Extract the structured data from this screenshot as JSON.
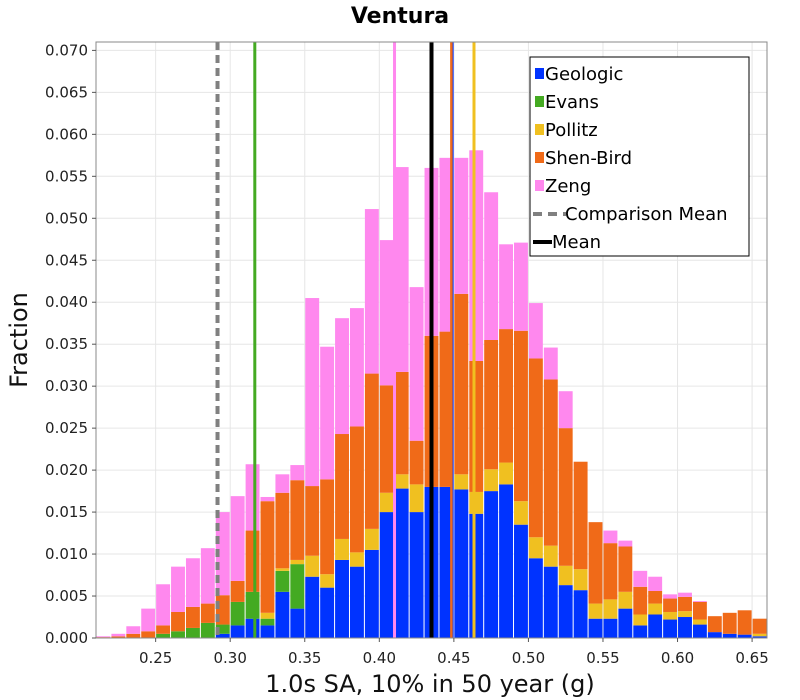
{
  "chart_data": {
    "type": "bar",
    "stacked": true,
    "title": "Ventura",
    "xlabel": "1.0s SA, 10% in 50 year (g)",
    "ylabel": "Fraction",
    "xlim": [
      0.21,
      0.66
    ],
    "ylim": [
      0,
      0.071
    ],
    "grid": true,
    "legend_position": "top-right",
    "bin_width": 0.01,
    "x_ticks": [
      "0.25",
      "0.30",
      "0.35",
      "0.40",
      "0.45",
      "0.50",
      "0.55",
      "0.60",
      "0.65"
    ],
    "x_tick_values": [
      0.25,
      0.3,
      0.35,
      0.4,
      0.45,
      0.5,
      0.55,
      0.6,
      0.65
    ],
    "y_ticks": [
      "0.000",
      "0.005",
      "0.010",
      "0.015",
      "0.020",
      "0.025",
      "0.030",
      "0.035",
      "0.040",
      "0.045",
      "0.050",
      "0.055",
      "0.060",
      "0.065",
      "0.070"
    ],
    "y_tick_values": [
      0,
      0.005,
      0.01,
      0.015,
      0.02,
      0.025,
      0.03,
      0.035,
      0.04,
      0.045,
      0.05,
      0.055,
      0.06,
      0.065,
      0.07
    ],
    "bins": [
      0.215,
      0.225,
      0.235,
      0.245,
      0.255,
      0.265,
      0.275,
      0.285,
      0.295,
      0.305,
      0.315,
      0.325,
      0.335,
      0.345,
      0.355,
      0.365,
      0.375,
      0.385,
      0.395,
      0.405,
      0.415,
      0.425,
      0.435,
      0.445,
      0.455,
      0.465,
      0.475,
      0.485,
      0.495,
      0.505,
      0.515,
      0.525,
      0.535,
      0.545,
      0.555,
      0.565,
      0.575,
      0.585,
      0.595,
      0.605,
      0.615,
      0.625,
      0.635,
      0.645,
      0.655
    ],
    "series": [
      {
        "name": "Geologic",
        "color": "#0033ff",
        "values": [
          0,
          0,
          0,
          0,
          0,
          0,
          0,
          0,
          0.0005,
          0.0015,
          0.0023,
          0.0015,
          0.0055,
          0.0035,
          0.0073,
          0.006,
          0.0093,
          0.0085,
          0.0105,
          0.015,
          0.0178,
          0.015,
          0.018,
          0.018,
          0.0177,
          0.0148,
          0.0175,
          0.0183,
          0.0135,
          0.0095,
          0.0085,
          0.0063,
          0.0057,
          0.0023,
          0.0023,
          0.0035,
          0.0015,
          0.0028,
          0.0022,
          0.0025,
          0.0016,
          0.0007,
          0.0005,
          0.0004,
          0.0002
        ]
      },
      {
        "name": "Evans",
        "color": "#44aa22",
        "values": [
          0,
          0,
          0,
          0,
          0.0005,
          0.0008,
          0.0012,
          0.0018,
          0.0011,
          0.0028,
          0.0032,
          0.0008,
          0.0025,
          0.0053,
          0,
          0,
          0,
          0,
          0,
          0,
          0,
          0,
          0,
          0,
          0,
          0,
          0,
          0,
          0,
          0,
          0,
          0,
          0,
          0,
          0,
          0,
          0,
          0,
          0,
          0,
          0,
          0,
          0,
          0,
          0
        ]
      },
      {
        "name": "Pollitz",
        "color": "#f0c020",
        "values": [
          0,
          0,
          0,
          0,
          0,
          0,
          0,
          0,
          0,
          0,
          0,
          0.0007,
          0.0003,
          0.0005,
          0.0025,
          0.0016,
          0.0025,
          0.0017,
          0.0025,
          0.0023,
          0.0017,
          0.0033,
          0,
          0,
          0.0018,
          0.0026,
          0.0026,
          0.0026,
          0.0028,
          0.0025,
          0.0025,
          0.0023,
          0.0025,
          0.0018,
          0.0023,
          0.002,
          0.0013,
          0.0013,
          0.0009,
          0.0007,
          0.0006,
          0,
          0,
          0,
          0.0003
        ]
      },
      {
        "name": "Shen-Bird",
        "color": "#f06a18",
        "values": [
          0.0001,
          0.0002,
          0.0005,
          0.0008,
          0.001,
          0.0023,
          0.0025,
          0.0023,
          0.0035,
          0.0025,
          0.0073,
          0.0133,
          0.009,
          0.0095,
          0.0083,
          0.0113,
          0.0125,
          0.015,
          0.0185,
          0.0128,
          0.0122,
          0.0052,
          0.018,
          0.0185,
          0.0215,
          0.0156,
          0.0154,
          0.0159,
          0.0203,
          0.0213,
          0.0198,
          0.0164,
          0.0128,
          0.0097,
          0.0067,
          0.0054,
          0.0033,
          0.0015,
          0.0016,
          0.0017,
          0.0021,
          0.0019,
          0.0025,
          0.0029,
          0.0018
        ]
      },
      {
        "name": "Zeng",
        "color": "#ff88ee",
        "values": [
          0.0001,
          0.0003,
          0.0009,
          0.0027,
          0.0049,
          0.0054,
          0.0058,
          0.0066,
          0.0099,
          0.0101,
          0.0079,
          0.0005,
          0.0022,
          0.0018,
          0.0224,
          0.0158,
          0.0138,
          0.0141,
          0.0196,
          0.0173,
          0.0244,
          0.0183,
          0.02,
          0.0207,
          0.0162,
          0.0251,
          0.0176,
          0.0101,
          0.0105,
          0.0066,
          0.0038,
          0.0044,
          0,
          0,
          0.0015,
          0.0007,
          0.0019,
          0.0017,
          0.0005,
          0.0005,
          0.0001,
          0,
          0,
          0,
          0
        ]
      }
    ],
    "vlines": [
      {
        "name": "Comparison Mean",
        "x": 0.2915,
        "color": "#808080",
        "dashed": true
      },
      {
        "name": "Mean",
        "x": 0.435,
        "color": "#000000",
        "dashed": false
      },
      {
        "name": "Evans",
        "x": 0.3165,
        "color": "#44aa22",
        "dashed": false
      },
      {
        "name": "Pollitz",
        "x": 0.4635,
        "color": "#f0c020",
        "dashed": false
      },
      {
        "name": "Shen-Bird",
        "x": 0.4485,
        "color": "#f06a18",
        "dashed": false
      },
      {
        "name": "Geologic",
        "x": 0.4495,
        "color": "#0033ff",
        "dashed": false
      },
      {
        "name": "Zeng",
        "x": 0.4102,
        "color": "#ff88ee",
        "dashed": false
      }
    ],
    "legend": [
      {
        "label": "Geologic",
        "color": "#0033ff",
        "kind": "box"
      },
      {
        "label": "Evans",
        "color": "#44aa22",
        "kind": "box"
      },
      {
        "label": "Pollitz",
        "color": "#f0c020",
        "kind": "box"
      },
      {
        "label": "Shen-Bird",
        "color": "#f06a18",
        "kind": "box"
      },
      {
        "label": "Zeng",
        "color": "#ff88ee",
        "kind": "box"
      },
      {
        "label": "Comparison Mean",
        "color": "#808080",
        "kind": "dash"
      },
      {
        "label": "Mean",
        "color": "#000000",
        "kind": "line"
      }
    ]
  }
}
